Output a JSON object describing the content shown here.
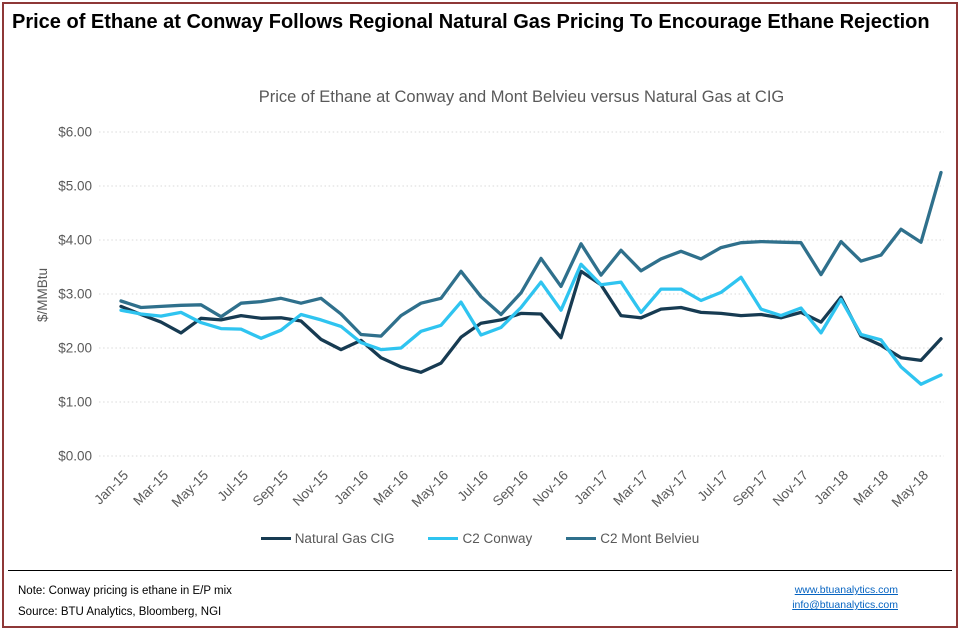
{
  "header": {
    "title": "Price of Ethane at Conway Follows Regional Natural Gas Pricing To Encourage Ethane Rejection"
  },
  "chart_data": {
    "type": "line",
    "title": "Price of Ethane at Conway and Mont Belvieu versus Natural Gas at CIG",
    "xlabel": "",
    "ylabel": "$/MMBtu",
    "ylim": [
      0,
      6
    ],
    "yticks": [
      "$0.00",
      "$1.00",
      "$2.00",
      "$3.00",
      "$4.00",
      "$5.00",
      "$6.00"
    ],
    "grid": "horizontal-dotted",
    "legend_position": "bottom",
    "x": [
      "Jan-15",
      "Feb-15",
      "Mar-15",
      "Apr-15",
      "May-15",
      "Jun-15",
      "Jul-15",
      "Aug-15",
      "Sep-15",
      "Oct-15",
      "Nov-15",
      "Dec-15",
      "Jan-16",
      "Feb-16",
      "Mar-16",
      "Apr-16",
      "May-16",
      "Jun-16",
      "Jul-16",
      "Aug-16",
      "Sep-16",
      "Oct-16",
      "Nov-16",
      "Dec-16",
      "Jan-17",
      "Feb-17",
      "Mar-17",
      "Apr-17",
      "May-17",
      "Jun-17",
      "Jul-17",
      "Aug-17",
      "Sep-17",
      "Oct-17",
      "Nov-17",
      "Dec-17",
      "Jan-18",
      "Feb-18",
      "Mar-18",
      "Apr-18",
      "May-18",
      "Jun-18"
    ],
    "xticks": [
      "Jan-15",
      "Mar-15",
      "May-15",
      "Jul-15",
      "Sep-15",
      "Nov-15",
      "Jan-16",
      "Mar-16",
      "May-16",
      "Jul-16",
      "Sep-16",
      "Nov-16",
      "Jan-17",
      "Mar-17",
      "May-17",
      "Jul-17",
      "Sep-17",
      "Nov-17",
      "Jan-18",
      "Mar-18",
      "May-18"
    ],
    "series": [
      {
        "name": "Natural Gas CIG",
        "color": "#173b52",
        "values": [
          2.77,
          2.62,
          2.48,
          2.28,
          2.55,
          2.52,
          2.6,
          2.55,
          2.56,
          2.5,
          2.16,
          1.97,
          2.14,
          1.82,
          1.65,
          1.55,
          1.72,
          2.2,
          2.46,
          2.52,
          2.64,
          2.63,
          2.19,
          3.42,
          3.17,
          2.6,
          2.56,
          2.72,
          2.75,
          2.66,
          2.64,
          2.6,
          2.62,
          2.56,
          2.66,
          2.48,
          2.94,
          2.22,
          2.05,
          1.82,
          1.77,
          2.17
        ]
      },
      {
        "name": "C2 Conway",
        "color": "#2fc4f0",
        "values": [
          2.7,
          2.63,
          2.59,
          2.66,
          2.47,
          2.36,
          2.35,
          2.18,
          2.33,
          2.62,
          2.52,
          2.4,
          2.1,
          1.97,
          2.0,
          2.31,
          2.42,
          2.85,
          2.24,
          2.38,
          2.75,
          3.22,
          2.7,
          3.55,
          3.17,
          3.22,
          2.66,
          3.09,
          3.09,
          2.88,
          3.03,
          3.31,
          2.72,
          2.6,
          2.74,
          2.28,
          2.9,
          2.25,
          2.15,
          1.65,
          1.33,
          1.5
        ]
      },
      {
        "name": "C2 Mont Belvieu",
        "color": "#2f708c",
        "values": [
          2.87,
          2.75,
          2.77,
          2.79,
          2.8,
          2.58,
          2.83,
          2.86,
          2.92,
          2.83,
          2.92,
          2.63,
          2.25,
          2.22,
          2.6,
          2.83,
          2.92,
          3.42,
          2.95,
          2.62,
          3.02,
          3.66,
          3.14,
          3.93,
          3.35,
          3.81,
          3.43,
          3.65,
          3.79,
          3.65,
          3.86,
          3.95,
          3.97,
          3.96,
          3.95,
          3.36,
          3.97,
          3.61,
          3.72,
          4.2,
          3.96,
          5.25
        ]
      }
    ],
    "style": {
      "gridline_color": "#d9d9d9",
      "axis_label_color": "#595959",
      "line_width": 3.3
    }
  },
  "footer": {
    "note": "Note:  Conway pricing is ethane in E/P mix",
    "source": "Source: BTU Analytics, Bloomberg, NGI",
    "link1": "www.btuanalytics.com",
    "link2": "info@btuanalytics.com"
  }
}
